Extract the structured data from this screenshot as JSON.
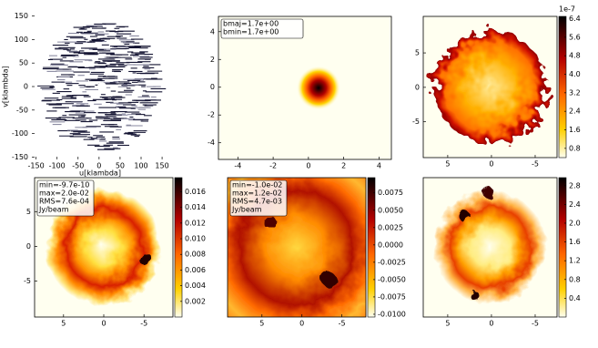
{
  "chart_data": [
    {
      "type": "scatter",
      "xlabel": "u[klambda]",
      "ylabel": "v[klambda]",
      "xlim": [
        -160,
        165
      ],
      "ylim": [
        -155,
        155
      ],
      "xticks": [
        -150,
        -100,
        -50,
        0,
        50,
        100,
        150
      ],
      "yticks": [
        150,
        100,
        50,
        0,
        -50,
        -100,
        -150
      ]
    },
    {
      "type": "image",
      "annotation": [
        "bmaj=1.7e+00",
        "bmin=1.7e+00"
      ],
      "xlim": [
        -5.1,
        4.7
      ],
      "ylim": [
        -5.2,
        5.1
      ],
      "xticks": [
        -4,
        -2,
        0,
        2,
        4
      ],
      "yticks": [
        4,
        2,
        0,
        -2,
        -4
      ]
    },
    {
      "type": "image",
      "xlim": [
        7.8,
        -7.5
      ],
      "ylim": [
        -10.2,
        10.3
      ],
      "xticks": [
        5,
        0,
        -5
      ],
      "yticks": [
        5,
        0,
        -5
      ],
      "colorbar": {
        "lim": [
          0.4,
          6.5
        ],
        "offset": "1e-7",
        "ticks": [
          6.4,
          5.6,
          4.8,
          {
            "value": 4.0,
            "label": "4.0"
          },
          3.2,
          2.4,
          1.6,
          0.8
        ]
      }
    },
    {
      "type": "image",
      "annotation": [
        "min=-9.7e-10",
        "max=2.0e-02",
        "RMS=7.6e-04",
        "Jy/beam"
      ],
      "xlim": [
        8.6,
        -8.6
      ],
      "ylim": [
        -10.2,
        9.9
      ],
      "xticks": [
        5,
        0,
        -5
      ],
      "yticks": [
        5,
        0,
        -5
      ],
      "colorbar": {
        "lim": [
          0,
          0.0178
        ],
        "ticks": [
          0.016,
          0.014,
          0.012,
          {
            "value": 0.01,
            "label": "0.010"
          },
          0.008,
          0.006,
          0.004,
          0.002
        ]
      }
    },
    {
      "type": "image",
      "annotation": [
        "min=-1.0e-02",
        "max=1.2e-02",
        "RMS=4.7e-03",
        "Jy/beam"
      ],
      "xlim": [
        9.3,
        -8.0
      ],
      "xticks": [
        5,
        0,
        -5
      ],
      "colorbar": {
        "lim": [
          -0.0104,
          0.0097
        ],
        "ticks": [
          0.0075,
          {
            "value": 0.005,
            "label": "0.0050"
          },
          0.0025,
          {
            "value": 0,
            "label": "0.0000"
          },
          -0.0025,
          {
            "value": -0.005,
            "label": "-0.0050"
          },
          -0.0075,
          {
            "value": -0.01,
            "label": "-0.0100"
          }
        ]
      }
    },
    {
      "type": "image",
      "xlim": [
        7.8,
        -7.5
      ],
      "xticks": [
        5,
        0,
        -5
      ],
      "colorbar": {
        "lim": [
          0,
          2.97
        ],
        "ticks": [
          2.8,
          2.4,
          {
            "value": 2.0,
            "label": "2.0"
          },
          1.6,
          1.2,
          0.8,
          0.4
        ]
      }
    }
  ]
}
